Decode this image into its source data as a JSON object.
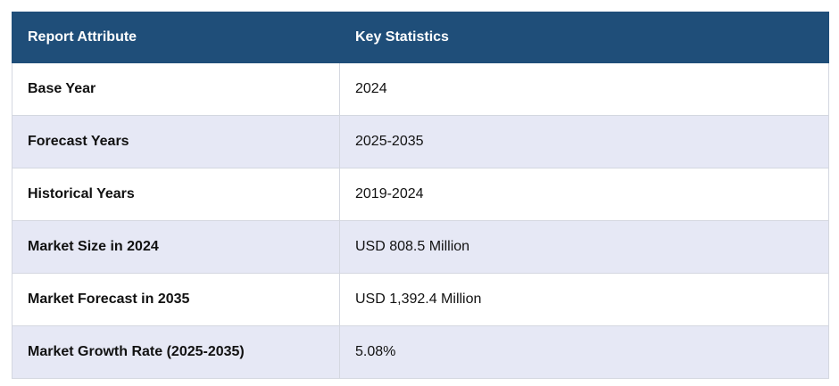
{
  "table": {
    "header": [
      "Report Attribute",
      "Key Statistics"
    ],
    "rows": [
      [
        "Base Year",
        "2024"
      ],
      [
        "Forecast Years",
        "2025-2035"
      ],
      [
        "Historical Years",
        "2019-2024"
      ],
      [
        "Market Size in 2024",
        "USD 808.5 Million"
      ],
      [
        "Market Forecast in 2035",
        "USD 1,392.4 Million"
      ],
      [
        "Market Growth Rate (2025-2035)",
        "5.08%"
      ]
    ]
  }
}
